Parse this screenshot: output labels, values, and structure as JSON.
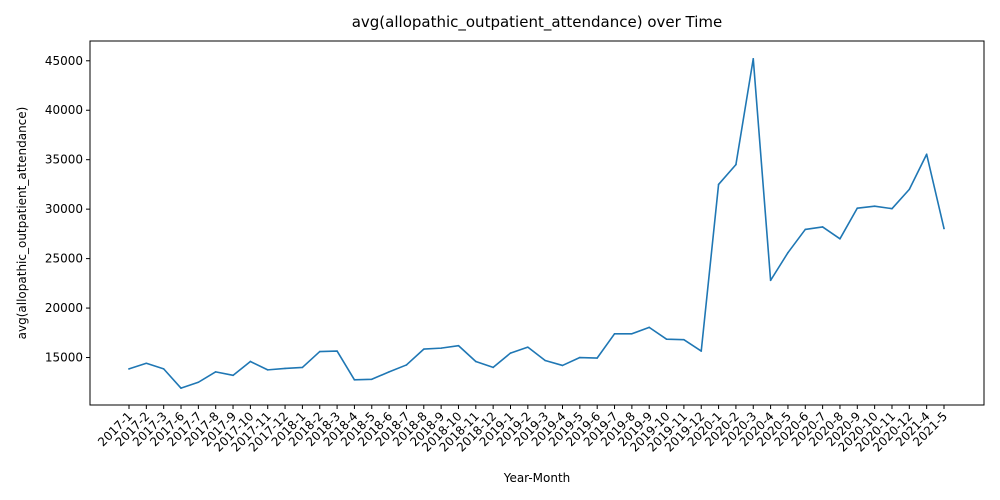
{
  "chart_data": {
    "type": "line",
    "title": "avg(allopathic_outpatient_attendance) over Time",
    "xlabel": "Year-Month",
    "ylabel": "avg(allopathic_outpatient_attendance)",
    "ylim": [
      10200,
      47000
    ],
    "yticks": [
      15000,
      20000,
      25000,
      30000,
      35000,
      40000,
      45000
    ],
    "grid": false,
    "legend": "none",
    "line_color": "#1f77b4",
    "categories": [
      "2017-1",
      "2017-2",
      "2017-3",
      "2017-6",
      "2017-7",
      "2017-8",
      "2017-9",
      "2017-10",
      "2017-11",
      "2017-12",
      "2018-1",
      "2018-2",
      "2018-3",
      "2018-4",
      "2018-5",
      "2018-6",
      "2018-7",
      "2018-8",
      "2018-9",
      "2018-10",
      "2018-11",
      "2018-12",
      "2019-1",
      "2019-2",
      "2019-3",
      "2019-4",
      "2019-5",
      "2019-6",
      "2019-7",
      "2019-8",
      "2019-9",
      "2019-10",
      "2019-11",
      "2019-12",
      "2020-1",
      "2020-2",
      "2020-3",
      "2020-4",
      "2020-5",
      "2020-6",
      "2020-7",
      "2020-8",
      "2020-9",
      "2020-10",
      "2020-11",
      "2020-12",
      "2021-4",
      "2021-5"
    ],
    "series": [
      {
        "values": [
          13850,
          14420,
          13850,
          11900,
          12500,
          13550,
          13200,
          14600,
          13750,
          13900,
          14000,
          15600,
          15650,
          12750,
          12800,
          13550,
          14250,
          15850,
          15950,
          16200,
          14600,
          14000,
          15450,
          16050,
          14700,
          14200,
          15000,
          14950,
          17400,
          17400,
          18050,
          16850,
          16800,
          15650,
          32500,
          34500,
          45200,
          22800,
          25600,
          27950,
          28200,
          27000,
          30100,
          30300,
          30050,
          32000,
          35550,
          28050
        ]
      }
    ]
  }
}
